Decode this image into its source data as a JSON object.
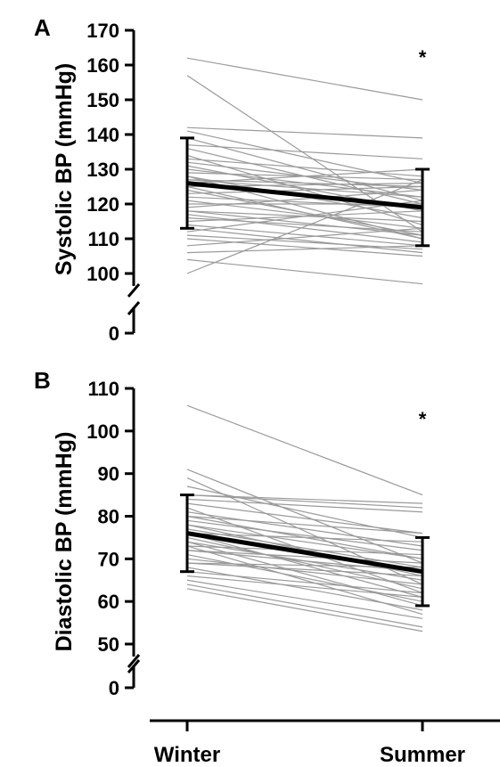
{
  "categories": [
    "Winter",
    "Summer"
  ],
  "chart_data": [
    {
      "type": "line",
      "panel_label": "A",
      "ylabel": "Systolic BP (mmHg)",
      "significance": "*",
      "yticks": [
        100,
        110,
        120,
        130,
        140,
        150,
        160,
        170
      ],
      "ylim": [
        100,
        170
      ],
      "y_break_value": 0,
      "mean": [
        126,
        119
      ],
      "error_bars": [
        [
          113,
          139
        ],
        [
          108,
          130
        ]
      ],
      "individuals": [
        [
          162,
          150
        ],
        [
          157,
          112
        ],
        [
          142,
          139
        ],
        [
          141,
          126
        ],
        [
          139,
          121
        ],
        [
          137,
          133
        ],
        [
          134,
          114
        ],
        [
          133,
          128
        ],
        [
          132,
          124
        ],
        [
          131,
          118
        ],
        [
          130,
          122
        ],
        [
          129,
          127
        ],
        [
          128,
          110
        ],
        [
          128,
          116
        ],
        [
          127,
          122
        ],
        [
          126,
          130
        ],
        [
          125,
          126
        ],
        [
          124,
          111
        ],
        [
          123,
          125
        ],
        [
          122,
          119
        ],
        [
          121,
          113
        ],
        [
          120,
          120
        ],
        [
          119,
          124
        ],
        [
          118,
          115
        ],
        [
          117,
          109
        ],
        [
          116,
          112
        ],
        [
          115,
          118
        ],
        [
          114,
          108
        ],
        [
          112,
          121
        ],
        [
          111,
          107
        ],
        [
          110,
          105
        ],
        [
          108,
          113
        ],
        [
          106,
          108
        ],
        [
          104,
          97
        ],
        [
          100,
          127
        ],
        [
          113,
          106
        ],
        [
          118,
          111
        ],
        [
          125,
          110
        ],
        [
          136,
          120
        ],
        [
          127,
          125
        ]
      ]
    },
    {
      "type": "line",
      "panel_label": "B",
      "ylabel": "Diastolic BP (mmHg)",
      "significance": "*",
      "yticks": [
        50,
        60,
        70,
        80,
        90,
        100,
        110
      ],
      "ylim": [
        50,
        110
      ],
      "y_break_value": 0,
      "mean": [
        76,
        67
      ],
      "error_bars": [
        [
          67,
          85
        ],
        [
          59,
          75
        ]
      ],
      "individuals": [
        [
          106,
          85
        ],
        [
          91,
          69
        ],
        [
          89,
          64
        ],
        [
          87,
          75
        ],
        [
          85,
          83
        ],
        [
          84,
          81
        ],
        [
          83,
          76
        ],
        [
          82,
          62
        ],
        [
          81,
          73
        ],
        [
          80,
          70
        ],
        [
          79,
          72
        ],
        [
          78,
          66
        ],
        [
          77,
          68
        ],
        [
          76,
          74
        ],
        [
          75,
          63
        ],
        [
          74,
          65
        ],
        [
          73,
          71
        ],
        [
          72,
          67
        ],
        [
          71,
          60
        ],
        [
          70,
          64
        ],
        [
          69,
          68
        ],
        [
          68,
          58
        ],
        [
          67,
          62
        ],
        [
          66,
          61
        ],
        [
          65,
          56
        ],
        [
          64,
          54
        ],
        [
          63,
          53
        ],
        [
          73,
          57
        ],
        [
          78,
          70
        ],
        [
          85,
          82
        ],
        [
          74,
          59
        ],
        [
          69,
          66
        ],
        [
          80,
          76
        ],
        [
          76,
          61
        ],
        [
          72,
          69
        ]
      ]
    }
  ]
}
